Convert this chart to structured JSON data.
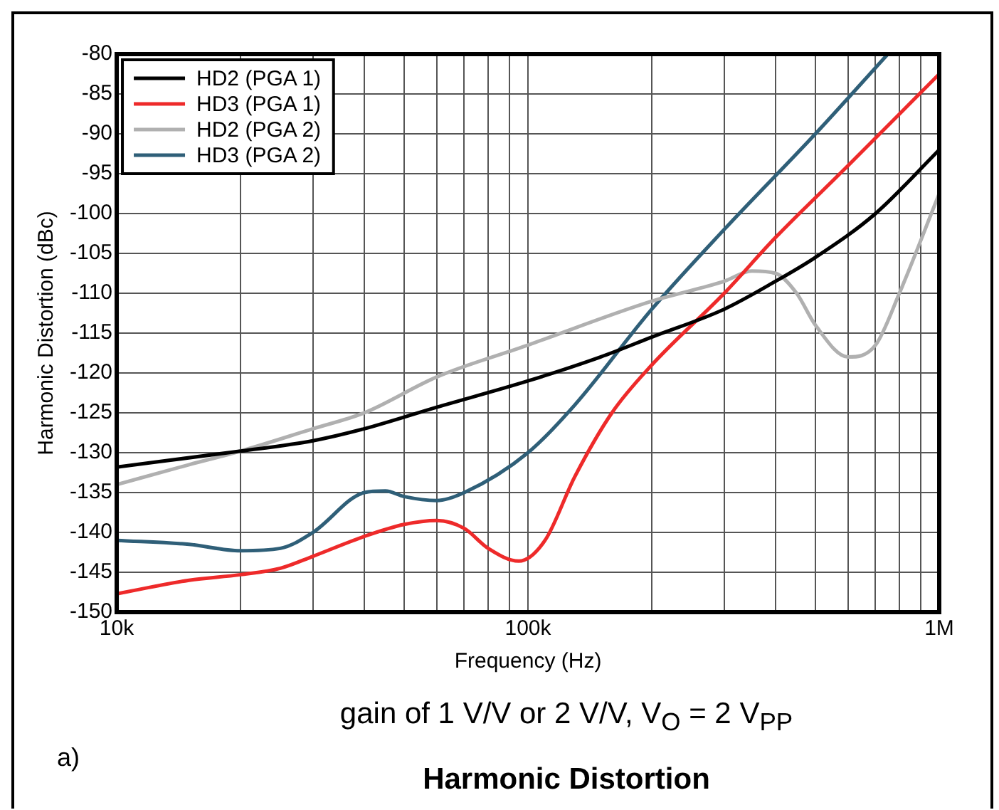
{
  "chart_data": {
    "type": "line",
    "xlabel": "Frequency (Hz)",
    "ylabel": "Harmonic Distortion (dBc)",
    "title": "Harmonic Distortion",
    "subtitle": "gain of 1 V/V or 2 V/V, V$_{O}$ = 2 V$_{PP}$",
    "annotations": [
      "a)"
    ],
    "log": "x",
    "grid": true,
    "legend": "top left",
    "marker": "none",
    "line_style": "solid",
    "xlim": [
      10000,
      1000000
    ],
    "ylim": [
      -150,
      -80
    ],
    "xticks": [
      {
        "value": 10000,
        "label": "10k"
      },
      {
        "value": 20000,
        "label": null
      },
      {
        "value": 30000,
        "label": null
      },
      {
        "value": 40000,
        "label": null
      },
      {
        "value": 50000,
        "label": null
      },
      {
        "value": 60000,
        "label": null
      },
      {
        "value": 70000,
        "label": null
      },
      {
        "value": 80000,
        "label": null
      },
      {
        "value": 90000,
        "label": null
      },
      {
        "value": 100000,
        "label": "100k"
      },
      {
        "value": 200000,
        "label": null
      },
      {
        "value": 300000,
        "label": null
      },
      {
        "value": 400000,
        "label": null
      },
      {
        "value": 500000,
        "label": null
      },
      {
        "value": 600000,
        "label": null
      },
      {
        "value": 700000,
        "label": null
      },
      {
        "value": 800000,
        "label": null
      },
      {
        "value": 900000,
        "label": null
      },
      {
        "value": 1000000,
        "label": "1M"
      }
    ],
    "yticks": [
      -150,
      -145,
      -140,
      -135,
      -130,
      -125,
      -120,
      -115,
      -110,
      -105,
      -100,
      -95,
      -90,
      -85,
      -80
    ],
    "series": [
      {
        "name": "HD2 (PGA 1)",
        "color": "#000000",
        "x": [
          10000,
          20000,
          30000,
          40000,
          60000,
          100000,
          150000,
          200000,
          300000,
          400000,
          500000,
          700000,
          1000000
        ],
        "values": [
          -131.8,
          -129.8,
          -128.5,
          -127,
          -124.3,
          -121,
          -118,
          -115.5,
          -112,
          -108.5,
          -105.5,
          -100,
          -92
        ]
      },
      {
        "name": "HD3 (PGA 1)",
        "color": "#ee2a2a",
        "x": [
          10000,
          15000,
          20000,
          25000,
          30000,
          40000,
          50000,
          60000,
          70000,
          80000,
          95000,
          110000,
          130000,
          160000,
          200000,
          300000,
          400000,
          600000,
          1000000
        ],
        "values": [
          -147.7,
          -146,
          -145.3,
          -144.5,
          -143,
          -140.5,
          -139,
          -138.5,
          -139.5,
          -142,
          -143.6,
          -141,
          -133,
          -125,
          -119,
          -110,
          -103,
          -94,
          -82.5
        ]
      },
      {
        "name": "HD2 (PGA 2)",
        "color": "#b0b0b0",
        "x": [
          10000,
          15000,
          20000,
          30000,
          40000,
          60000,
          100000,
          200000,
          300000,
          350000,
          400000,
          450000,
          500000,
          600000,
          700000,
          800000,
          1000000
        ],
        "values": [
          -134,
          -131.5,
          -129.8,
          -127,
          -125,
          -120.5,
          -116.5,
          -111,
          -108.5,
          -107.2,
          -107.5,
          -110,
          -114,
          -118,
          -116.5,
          -110,
          -97.5
        ]
      },
      {
        "name": "HD3 (PGA 2)",
        "color": "#2f5f78",
        "x": [
          10000,
          15000,
          20000,
          25000,
          30000,
          40000,
          45000,
          50000,
          60000,
          70000,
          100000,
          130000,
          200000,
          300000,
          500000,
          750000
        ],
        "values": [
          -141,
          -141.5,
          -142.3,
          -142,
          -140,
          -135,
          -134.8,
          -135.5,
          -136,
          -135,
          -130,
          -124,
          -112,
          -102,
          -90,
          -80
        ]
      }
    ]
  }
}
